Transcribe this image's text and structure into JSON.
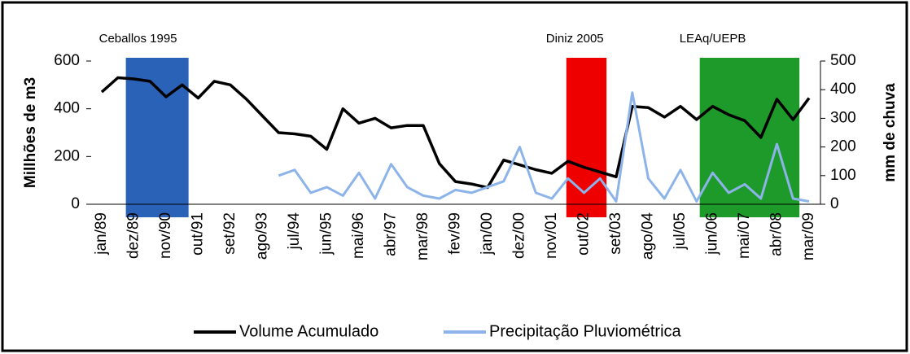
{
  "chart_data": {
    "type": "line",
    "ylabel": "Millhões de m3",
    "y2label": "mm de chuva",
    "categories": [
      "jan/89",
      null,
      "dez/89",
      null,
      "nov/90",
      null,
      "out/91",
      null,
      "set/92",
      null,
      "ago/93",
      null,
      "jul/94",
      null,
      "jun/95",
      null,
      "mai/96",
      null,
      "abr/97",
      null,
      "mar/98",
      null,
      "fev/99",
      null,
      "jan/00",
      null,
      "dez/00",
      null,
      "nov/01",
      null,
      "out/02",
      null,
      "set/03",
      null,
      "ago/04",
      null,
      "jul/05",
      null,
      "jun/06",
      null,
      "mai/07",
      null,
      "abr/08",
      null,
      "mar/09"
    ],
    "series": [
      {
        "name": "Volume Acumulado",
        "color": "#000000",
        "axis": "y",
        "values": [
          470,
          530,
          525,
          515,
          450,
          500,
          445,
          515,
          500,
          440,
          370,
          300,
          295,
          285,
          230,
          400,
          340,
          360,
          320,
          330,
          330,
          170,
          95,
          85,
          70,
          185,
          165,
          145,
          130,
          180,
          155,
          135,
          115,
          410,
          405,
          365,
          410,
          355,
          410,
          375,
          350,
          280,
          440,
          355,
          445
        ]
      },
      {
        "name": "Precipitação Pluviométrica",
        "color": "#8db4ea",
        "axis": "y2",
        "values": [
          null,
          null,
          null,
          null,
          null,
          null,
          null,
          null,
          null,
          null,
          null,
          100,
          120,
          40,
          60,
          30,
          110,
          20,
          140,
          60,
          30,
          20,
          50,
          40,
          60,
          80,
          200,
          40,
          20,
          90,
          40,
          90,
          10,
          390,
          90,
          20,
          120,
          10,
          110,
          40,
          70,
          20,
          210,
          20,
          10
        ]
      }
    ],
    "regions": [
      {
        "label": "Ceballos 1995",
        "color": "#2a62b8",
        "start": 1.5,
        "end": 5.4
      },
      {
        "label": "Diniz 2005",
        "color": "#ee0000",
        "start": 28.9,
        "end": 31.4
      },
      {
        "label": "LEAq/UEPB",
        "color": "#1e9a2a",
        "start": 37.2,
        "end": 43.4
      }
    ],
    "ylim": [
      0,
      600
    ],
    "yticks": [
      0,
      200,
      400,
      600
    ],
    "y2lim": [
      0,
      500
    ],
    "y2ticks": [
      0,
      100,
      200,
      300,
      400,
      500
    ],
    "legend": "bottom"
  }
}
